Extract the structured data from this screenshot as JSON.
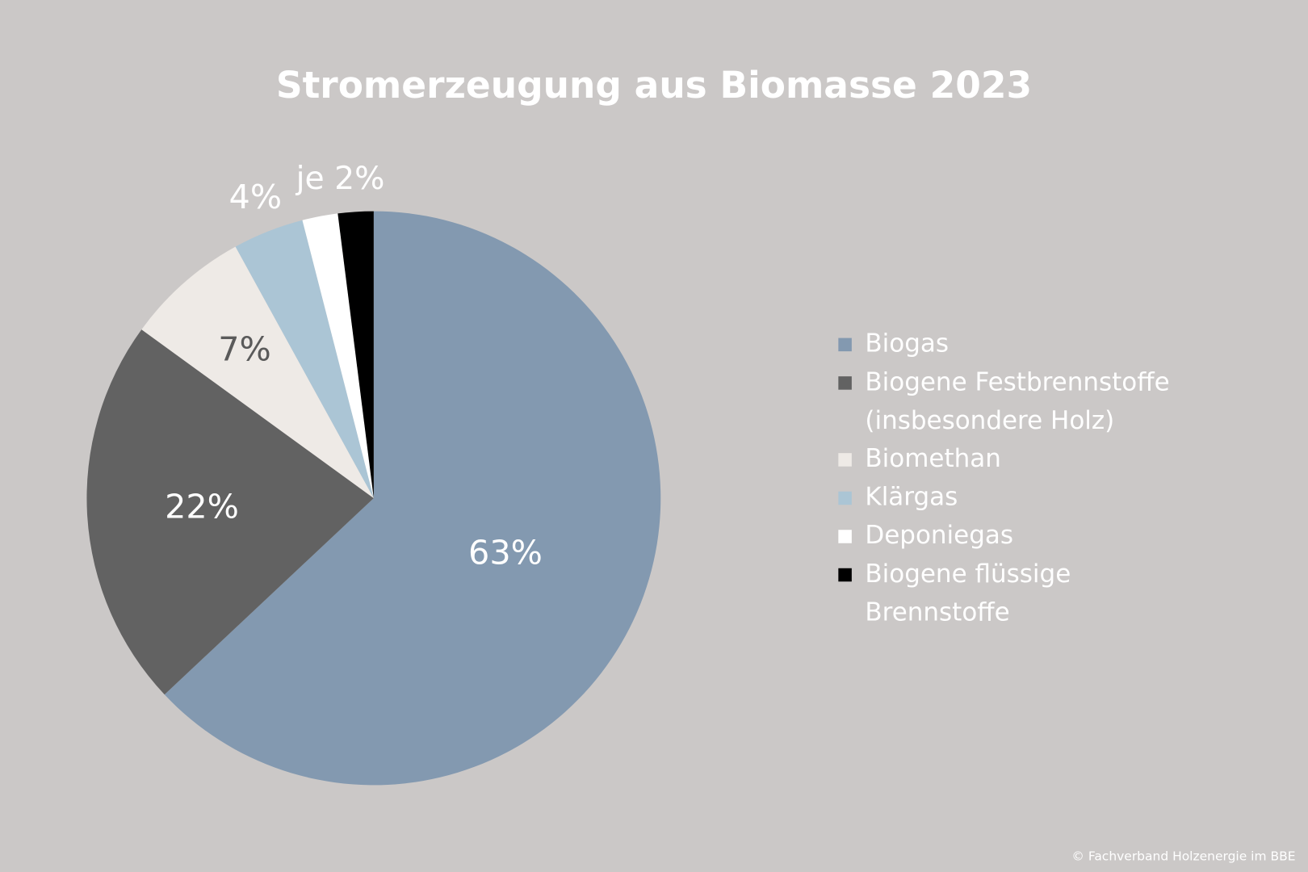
{
  "chart_data": {
    "type": "pie",
    "title": "Stromerzeugung aus Biomasse 2023",
    "categories": [
      "Biogas",
      "Biogene Festbrennstoffe\n(insbesondere Holz)",
      "Biomethan",
      "Klärgas",
      "Deponiegas",
      "Biogene flüssige\nBrennstoffe"
    ],
    "values": [
      63,
      22,
      7,
      4,
      2,
      2
    ],
    "value_labels": [
      "63%",
      "22%",
      "7%",
      "4%",
      null,
      null
    ],
    "colors": [
      "#8399b0",
      "#626262",
      "#eeeae6",
      "#abc5d5",
      "#ffffff",
      "#000000"
    ],
    "annotation": "je 2%",
    "source": "© Fachverband Holzenergie im BBE"
  }
}
